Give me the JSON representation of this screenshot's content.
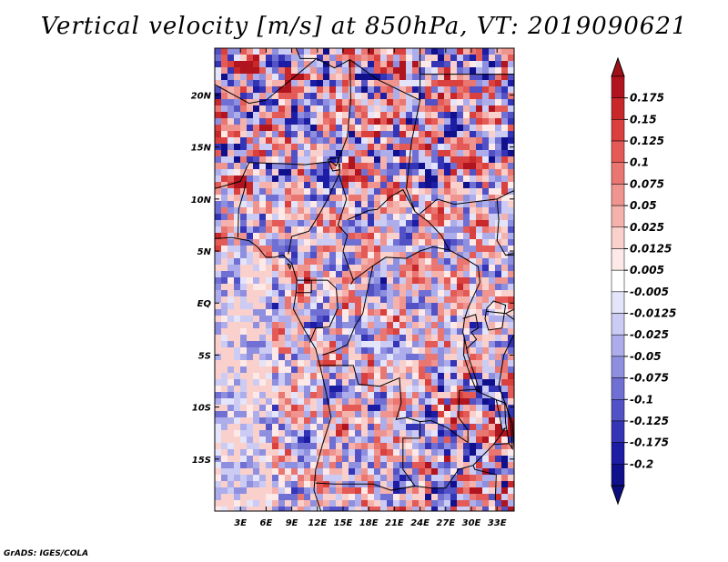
{
  "title": "Vertical velocity [m/s] at 850hPa, VT: 2019090621",
  "credit": "GrADS: IGES/COLA",
  "map": {
    "lat_ticks": [
      "20N",
      "15N",
      "10N",
      "5N",
      "EQ",
      "5S",
      "10S",
      "15S"
    ],
    "lat_values": [
      20,
      15,
      10,
      5,
      0,
      -5,
      -10,
      -15
    ],
    "lon_ticks": [
      "3E",
      "6E",
      "9E",
      "12E",
      "15E",
      "18E",
      "21E",
      "24E",
      "27E",
      "30E",
      "33E"
    ],
    "lon_values": [
      3,
      6,
      9,
      12,
      15,
      18,
      21,
      24,
      27,
      30,
      33
    ],
    "lon_range": [
      0,
      35
    ],
    "lat_range": [
      -20,
      24.5
    ]
  },
  "colorbar": {
    "labels": [
      "0.175",
      "0.15",
      "0.125",
      "0.1",
      "0.075",
      "0.05",
      "0.025",
      "0.0125",
      "0.005",
      "-0.005",
      "-0.0125",
      "-0.025",
      "-0.05",
      "-0.075",
      "-0.1",
      "-0.125",
      "-0.175",
      "-0.2"
    ],
    "colors": [
      "#b0141e",
      "#c8282a",
      "#d9403e",
      "#e35a56",
      "#ea7672",
      "#f0948f",
      "#f5b2ad",
      "#fad0cc",
      "#fde9e7",
      "#ffffff",
      "#e4e4fa",
      "#cbcbf4",
      "#adadeb",
      "#8f8fe0",
      "#7070d4",
      "#5252c6",
      "#3434b6",
      "#1c1ca4",
      "#10108c"
    ],
    "top_color": "#a01018",
    "bottom_color": "#0c0c80"
  }
}
